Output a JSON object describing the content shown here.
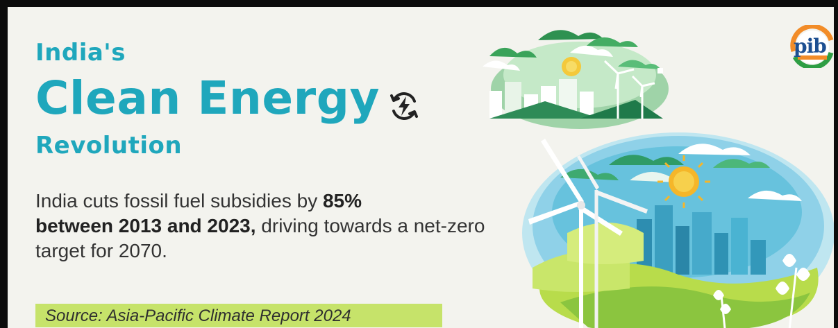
{
  "title": {
    "line1": "India's",
    "line2": "Clean Energy",
    "line3": "Revolution"
  },
  "body": {
    "part1": "India cuts fossil fuel subsidies by ",
    "bold1": "85%",
    "bold2": "between 2013 and 2023,",
    "part2": " driving towards a net-zero target for 2070."
  },
  "source": "Source: Asia-Pacific Climate Report 2024",
  "logo": {
    "text": "pib"
  },
  "icons": {
    "title_icon": "renewable-energy-bolt-icon",
    "logo": "pib-logo"
  },
  "colors": {
    "title": "#1fa7bc",
    "background": "#f3f3ee",
    "source_highlight": "#c6e36a",
    "text": "#333333"
  }
}
